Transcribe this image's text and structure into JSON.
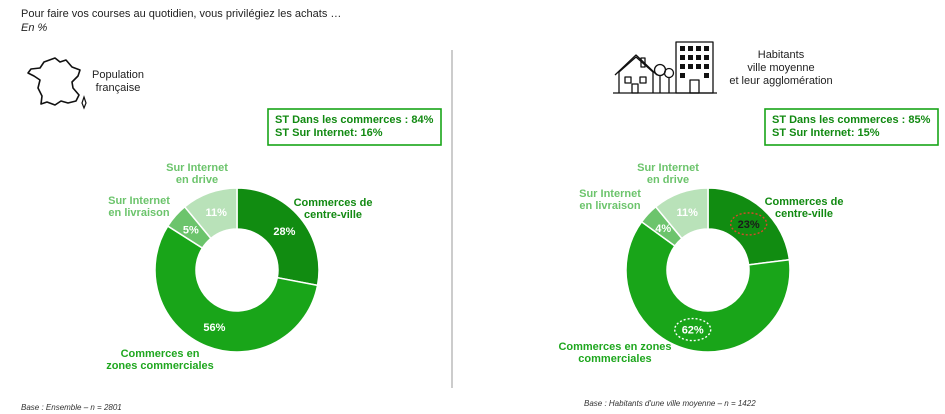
{
  "header": {
    "question": "Pour faire vos courses au quotidien, vous privilégiez les achats …",
    "unit": "En %"
  },
  "colors": {
    "centre_ville": "#118c11",
    "zones_commerciales": "#19a519",
    "internet_livraison": "#6cc46c",
    "internet_drive": "#b9e2b9",
    "label_dark": "#128a12",
    "label_mid": "#1fa71f",
    "label_light": "#6cc46c",
    "box_border": "#18a518",
    "annotation": "#d64a2a"
  },
  "chart_data": [
    {
      "type": "pie",
      "variant": "donut",
      "panel_label": [
        "Population",
        "française"
      ],
      "icon": "france-map-icon",
      "summary": [
        "ST Dans les commerces : 84%",
        "ST Sur Internet: 16%"
      ],
      "slices": [
        {
          "key": "centre_ville",
          "label": [
            "Commerces de",
            "centre-ville"
          ],
          "value": 28,
          "display": "28%"
        },
        {
          "key": "zones_commerciales",
          "label": [
            "Commerces en",
            "zones commerciales"
          ],
          "value": 56,
          "display": "56%"
        },
        {
          "key": "internet_livraison",
          "label": [
            "Sur Internet",
            "en livraison"
          ],
          "value": 5,
          "display": "5%"
        },
        {
          "key": "internet_drive",
          "label": [
            "Sur Internet",
            "en drive"
          ],
          "value": 11,
          "display": "11%"
        }
      ],
      "base": "Base : Ensemble – n = 2801"
    },
    {
      "type": "pie",
      "variant": "donut",
      "panel_label": [
        "Habitants",
        "ville moyenne",
        "et leur agglomération"
      ],
      "icon": "city-buildings-icon",
      "summary": [
        "ST Dans les commerces : 85%",
        "ST Sur Internet: 15%"
      ],
      "slices": [
        {
          "key": "centre_ville",
          "label": [
            "Commerces de",
            "centre-ville"
          ],
          "value": 23,
          "display": "23%",
          "circled": "red-dashed"
        },
        {
          "key": "zones_commerciales",
          "label": [
            "Commerces en zones",
            "commerciales"
          ],
          "value": 62,
          "display": "62%",
          "circled": "white-dashed"
        },
        {
          "key": "internet_livraison",
          "label": [
            "Sur Internet",
            "en livraison"
          ],
          "value": 4,
          "display": "4%"
        },
        {
          "key": "internet_drive",
          "label": [
            "Sur Internet",
            "en drive"
          ],
          "value": 11,
          "display": "11%"
        }
      ],
      "base": "Base : Habitants d'une ville moyenne – n = 1422"
    }
  ]
}
